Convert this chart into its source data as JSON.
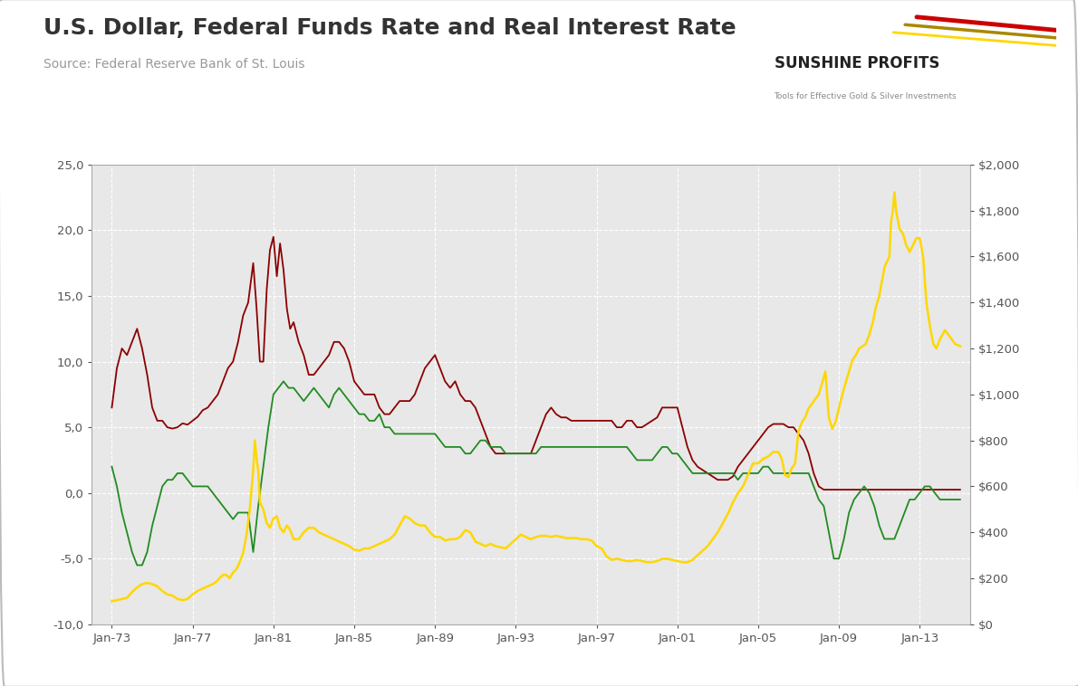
{
  "title": "U.S. Dollar, Federal Funds Rate and Real Interest Rate",
  "source": "Source: Federal Reserve Bank of St. Louis",
  "bg_color": "#e8e8e8",
  "outer_bg": "#ffffff",
  "left_ylim": [
    -10.0,
    25.0
  ],
  "right_ylim": [
    0,
    2000
  ],
  "left_yticks": [
    -10.0,
    -5.0,
    0.0,
    5.0,
    10.0,
    15.0,
    20.0,
    25.0
  ],
  "right_yticks": [
    0,
    200,
    400,
    600,
    800,
    1000,
    1200,
    1400,
    1600,
    1800,
    2000
  ],
  "fed_color": "#8b0000",
  "real_color": "#228B22",
  "gold_color": "#FFD700",
  "line_width": 1.3,
  "xtick_labels": [
    "Jan-73",
    "Jan-77",
    "Jan-81",
    "Jan-85",
    "Jan-89",
    "Jan-93",
    "Jan-97",
    "Jan-01",
    "Jan-05",
    "Jan-09",
    "Jan-13"
  ],
  "xtick_positions": [
    1973,
    1977,
    1981,
    1985,
    1989,
    1993,
    1997,
    2001,
    2005,
    2009,
    2013
  ],
  "xmin": 1972.0,
  "xmax": 2015.5,
  "grid_color": "#cccccc",
  "grid_style": "--",
  "border_color": "#aaaaaa",
  "title_color": "#333333",
  "source_color": "#999999",
  "tick_color": "#555555"
}
